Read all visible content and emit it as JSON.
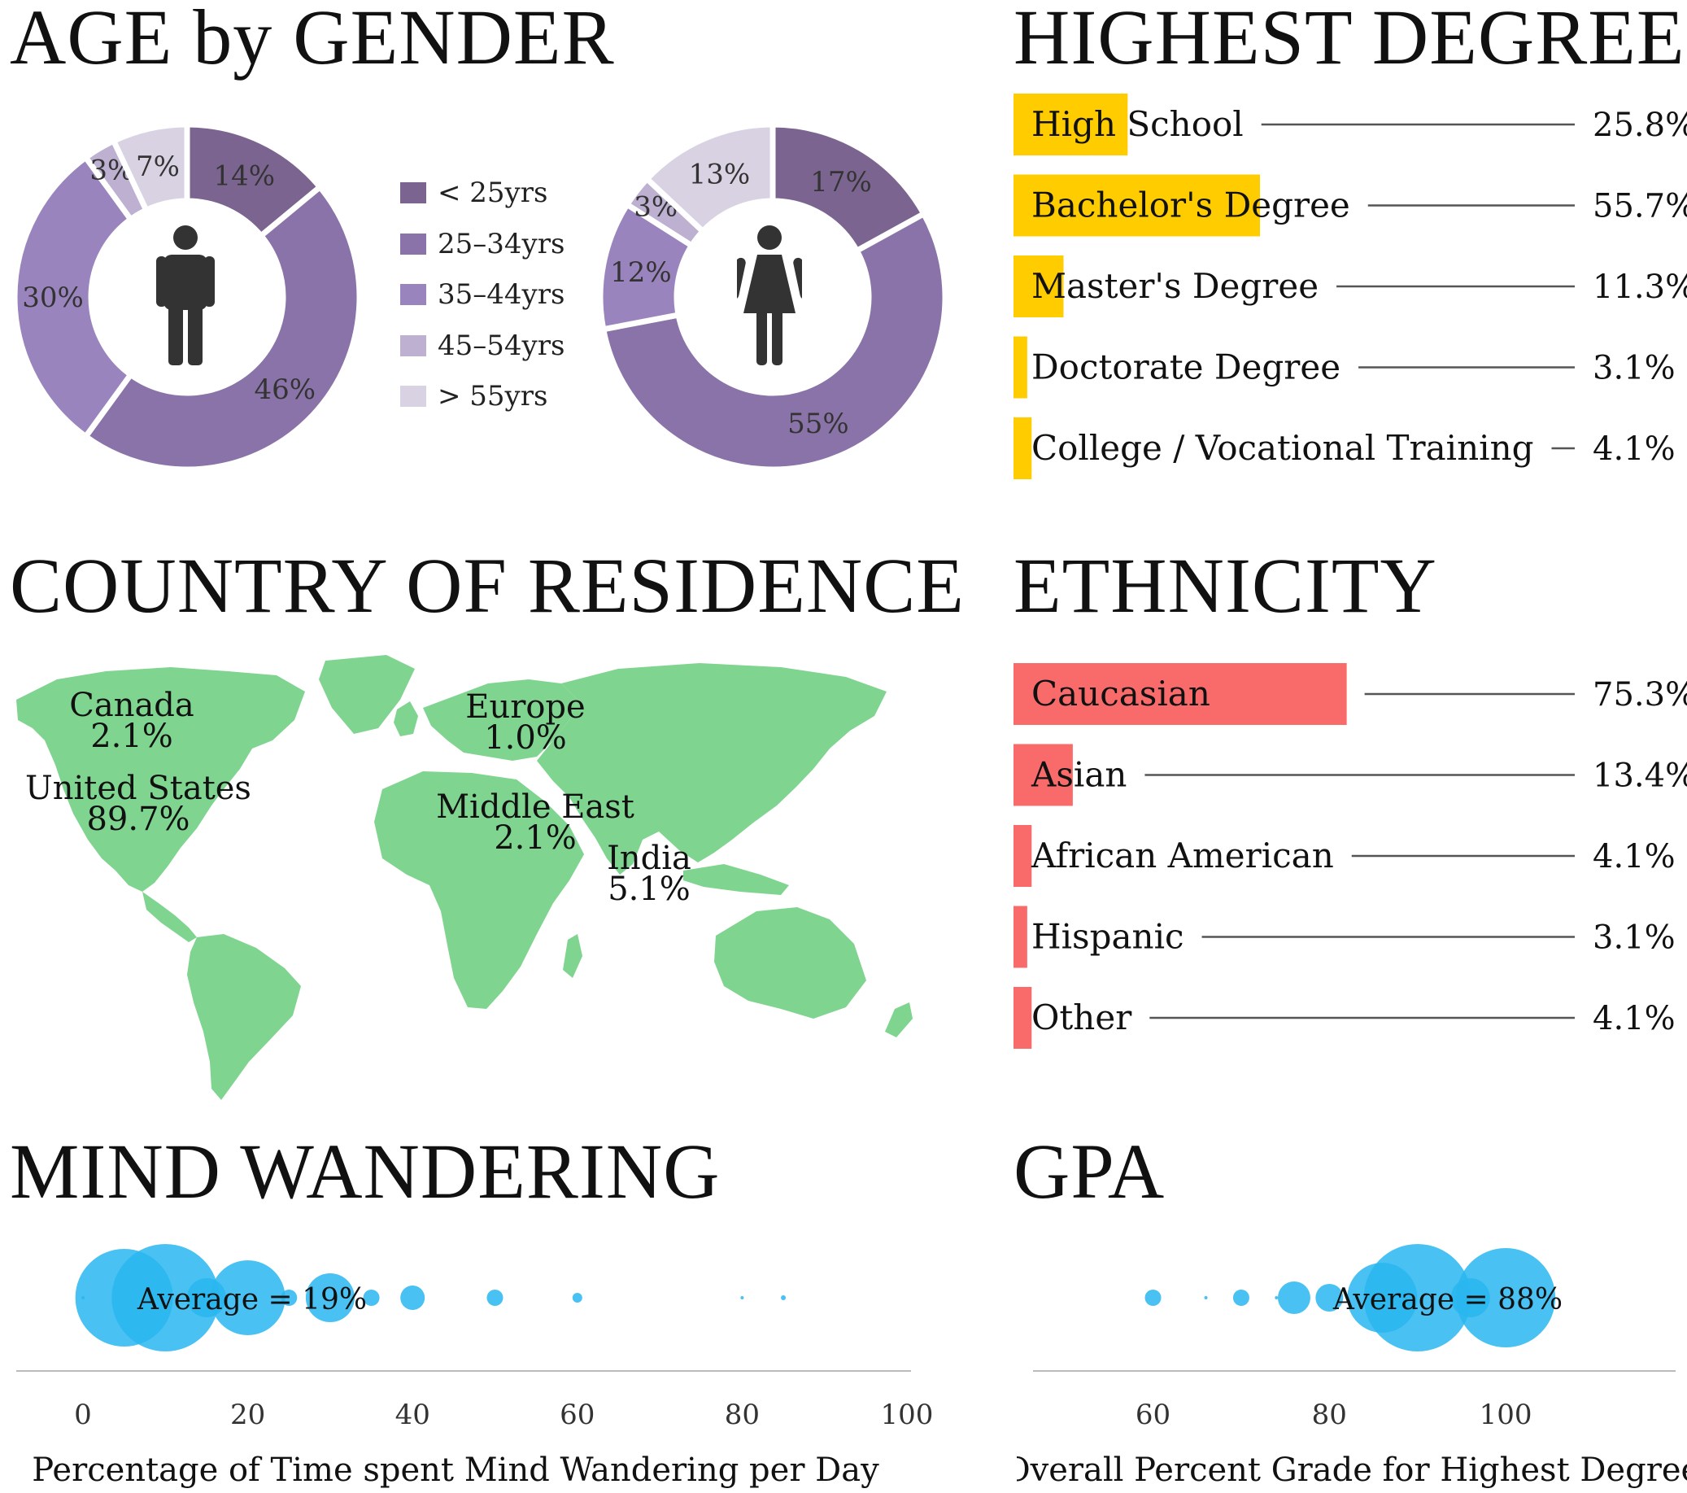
{
  "sections": {
    "age": "AGE by GENDER",
    "degree": "HIGHEST DEGREE",
    "country": "COUNTRY OF RESIDENCE",
    "ethnicity": "ETHNICITY",
    "mind": "MIND WANDERING",
    "gpa": "GPA"
  },
  "colors": {
    "age": [
      "#7b6590",
      "#8a73a8",
      "#9a84bd",
      "#bdb0d0",
      "#d9d2e3"
    ],
    "degree": "#ffcc00",
    "ethnicity": "#f96b6b",
    "map": "#7fd48f",
    "bubbles": "#29b6f0",
    "icon": "#333333"
  },
  "chart_data": [
    {
      "type": "pie",
      "donut": true,
      "icon": "male-person-icon",
      "categories": [
        "< 25yrs",
        "25–34yrs",
        "35–44yrs",
        "45–54yrs",
        "> 55yrs"
      ],
      "values": [
        14,
        46,
        30,
        3,
        7
      ],
      "labels": [
        "14%",
        "46%",
        "30%",
        "3%",
        "7%"
      ],
      "legend": "right"
    },
    {
      "type": "pie",
      "donut": true,
      "icon": "female-person-icon",
      "categories": [
        "< 25yrs",
        "25–34yrs",
        "35–44yrs",
        "45–54yrs",
        "> 55yrs"
      ],
      "values": [
        17,
        55,
        12,
        3,
        13
      ],
      "labels": [
        "17%",
        "55%",
        "12%",
        "3%",
        "13%"
      ]
    },
    {
      "type": "bar",
      "orientation": "horizontal",
      "categories": [
        "High School",
        "Bachelor's Degree",
        "Master's Degree",
        "Doctorate Degree",
        "College / Vocational Training"
      ],
      "values": [
        25.8,
        55.7,
        11.3,
        3.1,
        4.1
      ],
      "labels": [
        "25.8%",
        "55.7%",
        "11.3%",
        "3.1%",
        "4.1%"
      ]
    },
    {
      "type": "map",
      "regions": [
        {
          "name": "Canada",
          "label": "2.1%",
          "value": 2.1
        },
        {
          "name": "United States",
          "label": "89.7%",
          "value": 89.7
        },
        {
          "name": "Europe",
          "label": "1.0%",
          "value": 1.0
        },
        {
          "name": "Middle East",
          "label": "2.1%",
          "value": 2.1
        },
        {
          "name": "India",
          "label": "5.1%",
          "value": 5.1
        }
      ]
    },
    {
      "type": "bar",
      "orientation": "horizontal",
      "categories": [
        "Caucasian",
        "Asian",
        "African American",
        "Hispanic",
        "Other"
      ],
      "values": [
        75.3,
        13.4,
        4.1,
        3.1,
        4.1
      ],
      "labels": [
        "75.3%",
        "13.4%",
        "4.1%",
        "3.1%",
        "4.1%"
      ]
    },
    {
      "type": "scatter",
      "bubble": true,
      "xlabel": "Percentage of Time spent Mind Wandering per Day",
      "xlim": [
        0,
        100
      ],
      "xticks": [
        0,
        20,
        40,
        60,
        80,
        100
      ],
      "annotation": "Average = 19%",
      "points": [
        {
          "x": 0,
          "r": 2
        },
        {
          "x": 5,
          "r": 60
        },
        {
          "x": 10,
          "r": 66
        },
        {
          "x": 15,
          "r": 24
        },
        {
          "x": 20,
          "r": 46
        },
        {
          "x": 25,
          "r": 10
        },
        {
          "x": 30,
          "r": 30
        },
        {
          "x": 35,
          "r": 10
        },
        {
          "x": 40,
          "r": 15
        },
        {
          "x": 50,
          "r": 10
        },
        {
          "x": 60,
          "r": 6
        },
        {
          "x": 80,
          "r": 2
        },
        {
          "x": 85,
          "r": 3
        }
      ]
    },
    {
      "type": "scatter",
      "bubble": true,
      "xlabel": "Overall Percent Grade for Highest Degree",
      "xlim": [
        57,
        107
      ],
      "xticks": [
        60,
        80,
        100
      ],
      "annotation": "Average = 88%",
      "points": [
        {
          "x": 60,
          "r": 10
        },
        {
          "x": 66,
          "r": 2
        },
        {
          "x": 70,
          "r": 10
        },
        {
          "x": 74,
          "r": 2
        },
        {
          "x": 76,
          "r": 20
        },
        {
          "x": 80,
          "r": 17
        },
        {
          "x": 86,
          "r": 43
        },
        {
          "x": 90,
          "r": 66
        },
        {
          "x": 96,
          "r": 24
        },
        {
          "x": 100,
          "r": 61
        }
      ]
    }
  ]
}
